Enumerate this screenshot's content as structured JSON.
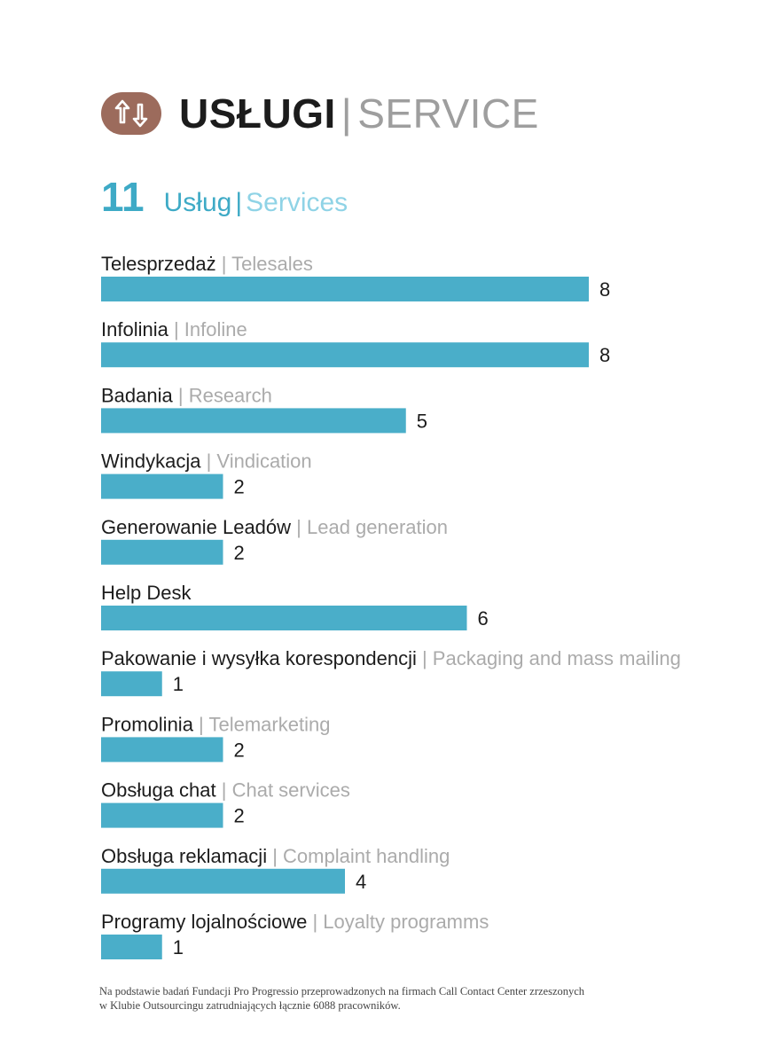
{
  "header": {
    "title_pl": "USŁUGI",
    "separator": "|",
    "title_en": "SERVICE",
    "icon": "up-down-arrows-icon",
    "pill_color": "#9c6b5c"
  },
  "subheader": {
    "count": "11",
    "label_pl": "Usług",
    "separator": "|",
    "label_en": "Services"
  },
  "chart_data": {
    "type": "bar",
    "orientation": "horizontal",
    "bar_color": "#4aaec9",
    "xlim": [
      0,
      8
    ],
    "categories": [
      {
        "pl": "Telesprzedaż",
        "en": "Telesales"
      },
      {
        "pl": "Infolinia",
        "en": "Infoline"
      },
      {
        "pl": "Badania",
        "en": "Research"
      },
      {
        "pl": "Windykacja",
        "en": "Vindication"
      },
      {
        "pl": "Generowanie Leadów",
        "en": "Lead generation"
      },
      {
        "pl": "Help Desk",
        "en": ""
      },
      {
        "pl": "Pakowanie i wysyłka korespondencji",
        "en": "Packaging and mass mailing"
      },
      {
        "pl": "Promolinia",
        "en": "Telemarketing"
      },
      {
        "pl": "Obsługa chat",
        "en": "Chat services"
      },
      {
        "pl": "Obsługa reklamacji",
        "en": "Complaint handling"
      },
      {
        "pl": "Programy lojalnościowe",
        "en": "Loyalty programms"
      }
    ],
    "values": [
      8,
      8,
      5,
      2,
      2,
      6,
      1,
      2,
      2,
      4,
      1
    ]
  },
  "footnote": {
    "line1": "Na podstawie badań Fundacji Pro Progressio przeprowadzonych na firmach Call Contact Center zrzeszonych",
    "line2": "w Klubie Outsourcingu zatrudniających łącznie 6088 pracowników."
  }
}
